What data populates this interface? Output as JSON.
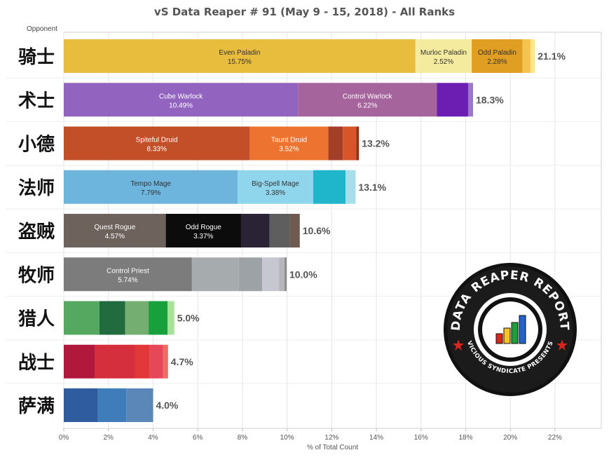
{
  "chart_data": {
    "type": "bar",
    "orientation": "horizontal",
    "stacked": true,
    "title": "vS Data Reaper # 91 (May 9 - 15, 2018) - All Ranks",
    "row_header": "Opponent",
    "xlabel": "% of Total Count",
    "xlim": [
      0,
      22.5
    ],
    "xticks": [
      "0%",
      "2%",
      "4%",
      "6%",
      "8%",
      "10%",
      "12%",
      "14%",
      "16%",
      "18%",
      "20%",
      "22%"
    ],
    "grid": true,
    "rows": [
      {
        "category": "骑士",
        "total_label": "21.1%",
        "segments": [
          {
            "name": "Even Paladin",
            "value_label": "15.75%",
            "value": 15.75,
            "color": "#E8BC3C"
          },
          {
            "name": "Murloc Paladin",
            "value_label": "2.52%",
            "value": 2.52,
            "color": "#F5EB9E"
          },
          {
            "name": "Odd Paladin",
            "value_label": "2.28%",
            "value": 2.28,
            "color": "#E09E22"
          },
          {
            "value": 0.35,
            "color": "#F5C350"
          },
          {
            "value": 0.2,
            "color": "#F9E78A"
          }
        ]
      },
      {
        "category": "术士",
        "total_label": "18.3%",
        "segments": [
          {
            "name": "Cube Warlock",
            "value_label": "10.49%",
            "value": 10.49,
            "color": "#9264C0"
          },
          {
            "name": "Control Warlock",
            "value_label": "6.22%",
            "value": 6.22,
            "color": "#A5659C"
          },
          {
            "value": 1.4,
            "color": "#6D1EB2"
          },
          {
            "value": 0.22,
            "color": "#9C78C8"
          }
        ]
      },
      {
        "category": "小德",
        "total_label": "13.2%",
        "segments": [
          {
            "name": "Spiteful Druid",
            "value_label": "8.33%",
            "value": 8.33,
            "color": "#C24F28"
          },
          {
            "name": "Taunt Druid",
            "value_label": "3.52%",
            "value": 3.52,
            "color": "#EC7430"
          },
          {
            "value": 0.65,
            "color": "#A33F26"
          },
          {
            "value": 0.6,
            "color": "#D8552A"
          },
          {
            "value": 0.12,
            "color": "#8E3218"
          }
        ]
      },
      {
        "category": "法师",
        "total_label": "13.1%",
        "segments": [
          {
            "name": "Tempo Mage",
            "value_label": "7.79%",
            "value": 7.79,
            "color": "#6DB5DC"
          },
          {
            "name": "Big-Spell Mage",
            "value_label": "3.38%",
            "value": 3.38,
            "color": "#8FD6EC"
          },
          {
            "value": 1.45,
            "color": "#1FB6CC"
          },
          {
            "value": 0.45,
            "color": "#A8DDEA"
          }
        ]
      },
      {
        "category": "盗贼",
        "total_label": "10.6%",
        "segments": [
          {
            "name": "Quest Rogue",
            "value_label": "4.57%",
            "value": 4.57,
            "color": "#6E625C"
          },
          {
            "name": "Odd Rogue",
            "value_label": "3.37%",
            "value": 3.37,
            "color": "#0C0C0C"
          },
          {
            "value": 1.28,
            "color": "#2A2235"
          },
          {
            "value": 0.9,
            "color": "#5E5E5E"
          },
          {
            "value": 0.45,
            "color": "#6E5A50"
          }
        ]
      },
      {
        "category": "牧师",
        "total_label": "10.0%",
        "segments": [
          {
            "name": "Control Priest",
            "value_label": "5.74%",
            "value": 5.74,
            "color": "#7C7C7C"
          },
          {
            "value": 2.1,
            "color": "#A6ABAD"
          },
          {
            "value": 1.05,
            "color": "#9CA2A5"
          },
          {
            "value": 0.75,
            "color": "#C7C7D2"
          },
          {
            "value": 0.25,
            "color": "#B5B5BA"
          },
          {
            "value": 0.09,
            "color": "#888888"
          }
        ]
      },
      {
        "category": "猎人",
        "total_label": "5.0%",
        "segments": [
          {
            "value": 1.6,
            "color": "#55A860"
          },
          {
            "value": 1.15,
            "color": "#226B3E"
          },
          {
            "value": 1.05,
            "color": "#74AE70"
          },
          {
            "value": 0.85,
            "color": "#18A03C"
          },
          {
            "value": 0.3,
            "color": "#A8E29A"
          }
        ]
      },
      {
        "category": "战士",
        "total_label": "4.7%",
        "segments": [
          {
            "value": 1.4,
            "color": "#B0183C"
          },
          {
            "value": 1.8,
            "color": "#D52E3C"
          },
          {
            "value": 0.65,
            "color": "#E2383A"
          },
          {
            "value": 0.6,
            "color": "#E6485A"
          },
          {
            "value": 0.22,
            "color": "#EE6C62"
          }
        ]
      },
      {
        "category": "萨满",
        "total_label": "4.0%",
        "segments": [
          {
            "value": 1.53,
            "color": "#2E5C9E"
          },
          {
            "value": 1.27,
            "color": "#3E7DBA"
          },
          {
            "value": 1.2,
            "color": "#5B86B8"
          }
        ]
      }
    ]
  },
  "badge": {
    "name": "DATA REAPER REPORT",
    "subtitle": "VICIOUS SYNDICATE PRESENTS",
    "colors": {
      "ring": "#111111",
      "bars": [
        "#E2231A",
        "#F5C518",
        "#1E9E3A",
        "#2563C8"
      ]
    }
  }
}
